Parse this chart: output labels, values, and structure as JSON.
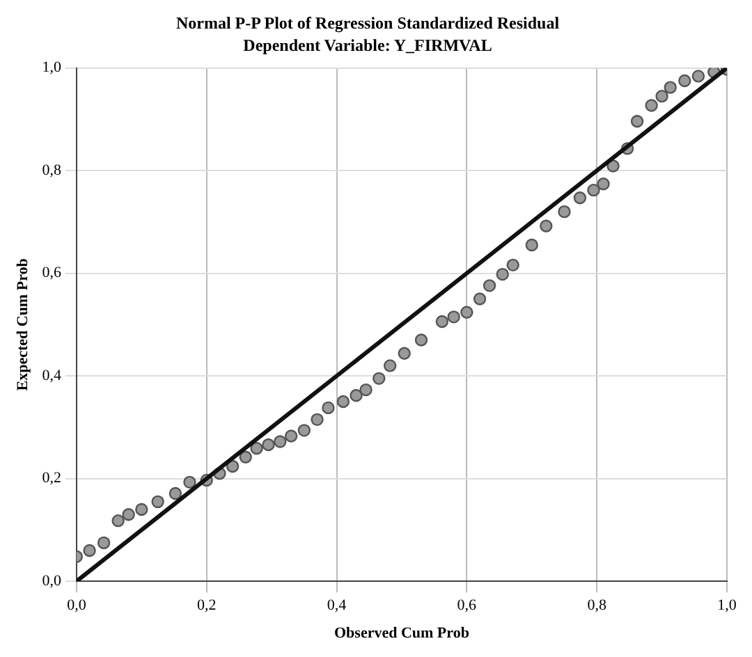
{
  "chart_data": {
    "type": "scatter",
    "title": "Normal P-P Plot of Regression Standardized Residual",
    "subtitle": "Dependent Variable: Y_FIRMVAL",
    "xlabel": "Observed Cum Prob",
    "ylabel": "Expected Cum Prob",
    "xlim": [
      0,
      1
    ],
    "ylim": [
      0,
      1
    ],
    "xticks": [
      {
        "value": 0,
        "label": "0,0"
      },
      {
        "value": 0.2,
        "label": "0,2"
      },
      {
        "value": 0.4,
        "label": "0,4"
      },
      {
        "value": 0.6,
        "label": "0,6"
      },
      {
        "value": 0.8,
        "label": "0,8"
      },
      {
        "value": 1,
        "label": "1,0"
      }
    ],
    "yticks": [
      {
        "value": 0,
        "label": "0,0"
      },
      {
        "value": 0.2,
        "label": "0,2"
      },
      {
        "value": 0.4,
        "label": "0,4"
      },
      {
        "value": 0.6,
        "label": "0,6"
      },
      {
        "value": 0.8,
        "label": "0,8"
      },
      {
        "value": 1,
        "label": "1,0"
      }
    ],
    "grid": true,
    "legend": false,
    "marker": "circle",
    "series": [
      {
        "color": "#555555",
        "x": [
          0.0,
          0.02,
          0.042,
          0.064,
          0.08,
          0.1,
          0.125,
          0.152,
          0.174,
          0.2,
          0.22,
          0.24,
          0.26,
          0.277,
          0.295,
          0.313,
          0.33,
          0.35,
          0.37,
          0.387,
          0.41,
          0.43,
          0.445,
          0.465,
          0.482,
          0.504,
          0.53,
          0.562,
          0.58,
          0.6,
          0.62,
          0.635,
          0.655,
          0.671,
          0.7,
          0.722,
          0.75,
          0.774,
          0.795,
          0.81,
          0.825,
          0.847,
          0.862,
          0.884,
          0.9,
          0.913,
          0.935,
          0.956,
          0.98,
          1.0
        ],
        "values": [
          0.048,
          0.06,
          0.075,
          0.118,
          0.13,
          0.14,
          0.155,
          0.171,
          0.193,
          0.197,
          0.21,
          0.224,
          0.242,
          0.259,
          0.266,
          0.272,
          0.283,
          0.294,
          0.315,
          0.338,
          0.35,
          0.362,
          0.373,
          0.395,
          0.42,
          0.444,
          0.47,
          0.506,
          0.515,
          0.524,
          0.55,
          0.576,
          0.598,
          0.616,
          0.655,
          0.692,
          0.72,
          0.747,
          0.762,
          0.774,
          0.809,
          0.843,
          0.896,
          0.927,
          0.945,
          0.962,
          0.975,
          0.984,
          0.992,
          0.997
        ]
      },
      {
        "type": "line",
        "color": "#111111",
        "marker": "none",
        "x": [
          0,
          1
        ],
        "values": [
          0,
          1
        ]
      }
    ]
  }
}
